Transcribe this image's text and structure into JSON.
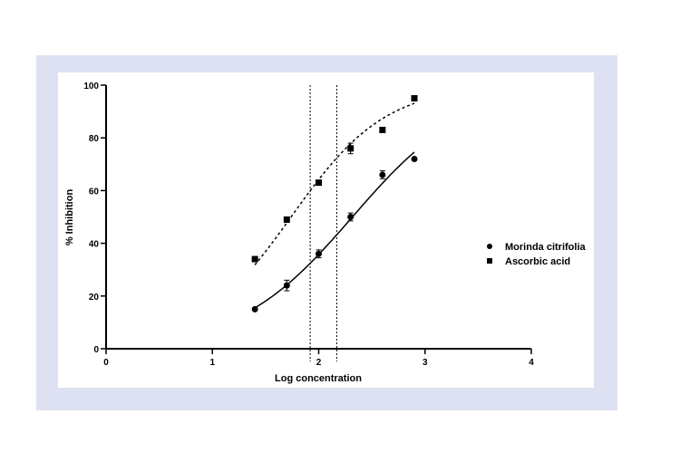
{
  "chart_data": {
    "type": "scatter",
    "title": "",
    "xlabel": "Log concentration",
    "ylabel": "% Inhibition",
    "xlim": [
      0,
      4
    ],
    "ylim": [
      0,
      100
    ],
    "x_ticks": [
      "0",
      "1",
      "2",
      "3",
      "4"
    ],
    "y_ticks": [
      "0",
      "20",
      "40",
      "60",
      "80",
      "100"
    ],
    "grid": false,
    "legend_position": "right",
    "reference_lines_x": [
      1.92,
      2.17
    ],
    "series": [
      {
        "name": "Morinda citrifolia",
        "marker": "circle",
        "fit_line": "solid",
        "x": [
          1.4,
          1.7,
          2.0,
          2.3,
          2.6,
          2.9
        ],
        "y": [
          15,
          24,
          36,
          50,
          66,
          72
        ],
        "err": [
          0,
          2,
          1.5,
          1.5,
          1.5,
          0
        ]
      },
      {
        "name": "Ascorbic acid",
        "marker": "square",
        "fit_line": "dashed",
        "x": [
          1.4,
          1.7,
          2.0,
          2.3,
          2.6,
          2.9
        ],
        "y": [
          34,
          49,
          63,
          76,
          83,
          95
        ],
        "err": [
          0,
          1,
          0,
          2,
          0,
          0
        ]
      }
    ]
  }
}
